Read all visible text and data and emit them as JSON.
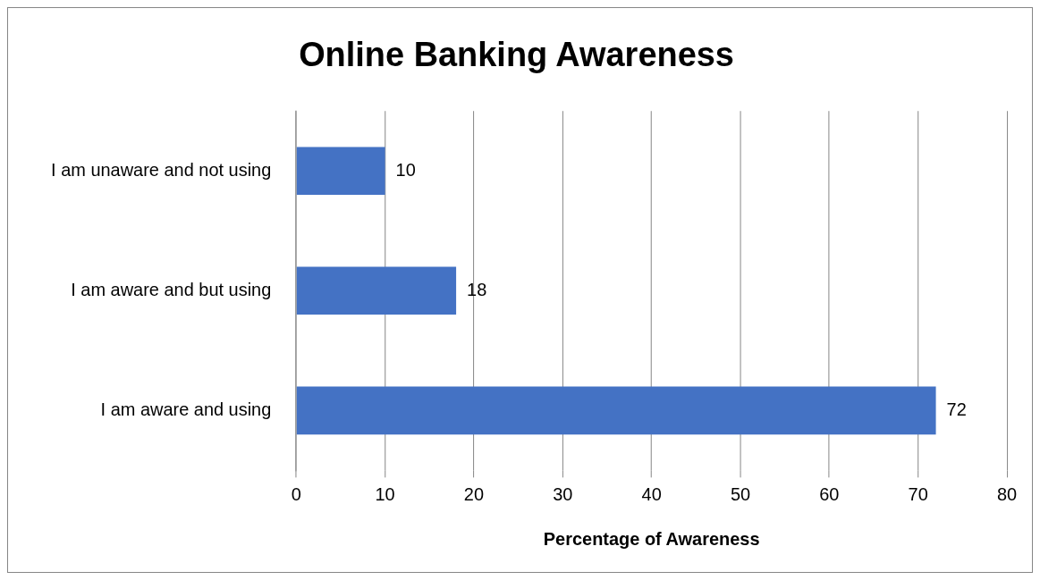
{
  "chart_data": {
    "type": "bar",
    "orientation": "horizontal",
    "title": "Online Banking Awareness",
    "xlabel": "Percentage of Awareness",
    "categories": [
      "I am unaware and not using",
      "I am aware and but using",
      "I am aware and using"
    ],
    "values": [
      10,
      18,
      72
    ],
    "color": "#4472c4",
    "xlim": [
      0,
      80
    ],
    "xticks": [
      0,
      10,
      20,
      30,
      40,
      50,
      60,
      70,
      80
    ],
    "grid": "x",
    "data_labels": true
  }
}
